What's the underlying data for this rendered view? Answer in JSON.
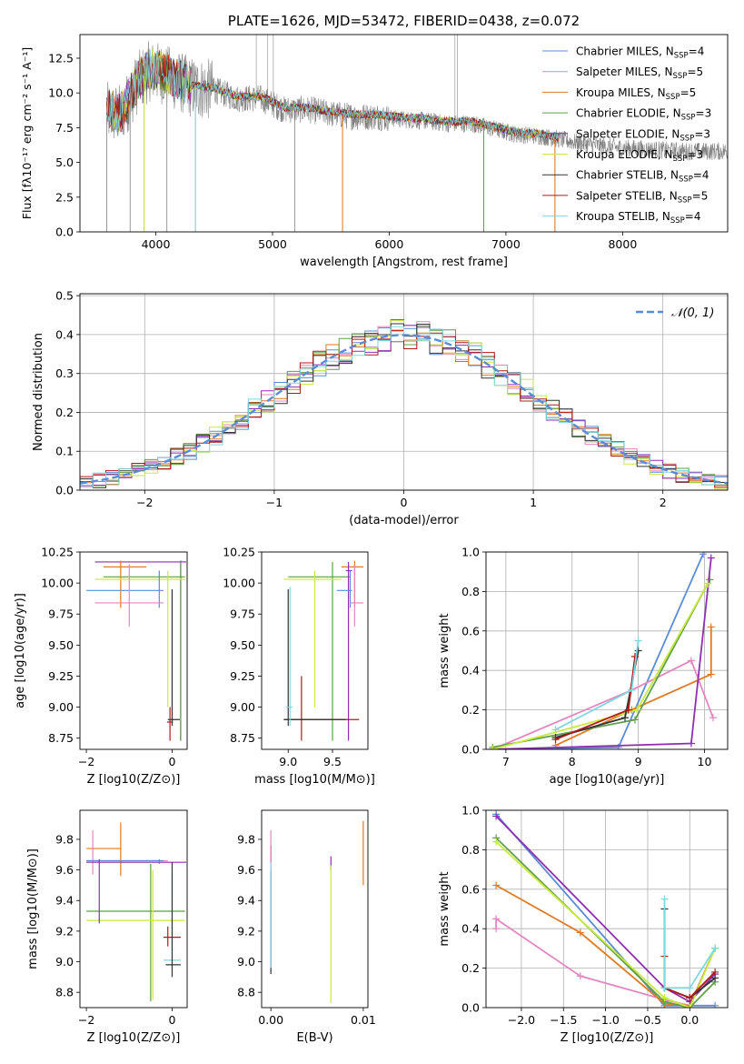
{
  "colors": {
    "chabrier_miles": "#5b8bd6",
    "salpeter_miles": "#e387bf",
    "kroupa_miles": "#e07b22",
    "chabrier_elodie": "#5f9e4a",
    "salpeter_elodie": "#8e2fb0",
    "kroupa_elodie": "#c9ea3c",
    "chabrier_stelib": "#333333",
    "salpeter_stelib": "#b01818",
    "kroupa_stelib": "#7fd7e0",
    "observed": "#808080",
    "normal": "#5b8bd6",
    "grid": "#b0b0b0"
  },
  "chart_data": [
    {
      "id": "spectrum",
      "type": "line",
      "title": "PLATE=1626, MJD=53472, FIBERID=0438, z=0.072",
      "xlabel": "wavelength [Angstrom, rest frame]",
      "ylabel": "Flux [fλ10⁻¹⁷ erg cm⁻² s⁻¹ A⁻¹]",
      "xlim": [
        3350,
        8900
      ],
      "ylim": [
        0,
        14.2
      ],
      "xticks": [
        4000,
        5000,
        6000,
        7000,
        8000
      ],
      "yticks": [
        0.0,
        2.5,
        5.0,
        7.5,
        10.0,
        12.5
      ],
      "legend_position": "upper-right",
      "legend": [
        {
          "label": "Chabrier MILES, N",
          "sub": "SSP",
          "tail": "=4",
          "color_key": "chabrier_miles"
        },
        {
          "label": "Salpeter MILES, N",
          "sub": "SSP",
          "tail": "=5",
          "color_key": "salpeter_miles"
        },
        {
          "label": "Kroupa MILES, N",
          "sub": "SSP",
          "tail": "=5",
          "color_key": "kroupa_miles"
        },
        {
          "label": "Chabrier ELODIE, N",
          "sub": "SSP",
          "tail": "=3",
          "color_key": "chabrier_elodie"
        },
        {
          "label": "Salpeter ELODIE, N",
          "sub": "SSP",
          "tail": "=3",
          "color_key": "salpeter_elodie"
        },
        {
          "label": "Kroupa ELODIE, N",
          "sub": "SSP",
          "tail": "=3",
          "color_key": "kroupa_elodie"
        },
        {
          "label": "Chabrier STELIB, N",
          "sub": "SSP",
          "tail": "=4",
          "color_key": "chabrier_stelib"
        },
        {
          "label": "Salpeter STELIB, N",
          "sub": "SSP",
          "tail": "=5",
          "color_key": "salpeter_stelib"
        },
        {
          "label": "Kroupa STELIB, N",
          "sub": "SSP",
          "tail": "=4",
          "color_key": "kroupa_stelib"
        }
      ],
      "continuum": {
        "x": [
          3580,
          3700,
          3850,
          3950,
          4050,
          4150,
          4300,
          4500,
          4700,
          4900,
          5100,
          5300,
          5500,
          5700,
          5900,
          6100,
          6300,
          6500,
          6700,
          6900,
          7100,
          7300,
          7500,
          7700,
          7900,
          8100,
          8300,
          8500,
          8900
        ],
        "y": [
          8.6,
          8.4,
          10.8,
          11.6,
          11.4,
          11.0,
          10.4,
          10.2,
          9.6,
          9.6,
          8.8,
          8.8,
          8.5,
          8.3,
          8.3,
          8.1,
          8.0,
          7.8,
          7.8,
          7.4,
          7.0,
          6.9,
          6.6,
          6.3,
          6.1,
          6.0,
          5.9,
          5.8,
          5.8
        ]
      },
      "dropouts_x": [
        3580,
        3780,
        3900,
        4095,
        4340,
        5190,
        5600,
        6810,
        7420
      ]
    },
    {
      "id": "residuals",
      "type": "bar",
      "xlabel": "(data-model)/error",
      "ylabel": "Normed distribution",
      "xlim": [
        -2.5,
        2.5
      ],
      "ylim": [
        0,
        0.505
      ],
      "xticks": [
        -2,
        -1,
        0,
        1,
        2
      ],
      "yticks": [
        0.0,
        0.1,
        0.2,
        0.3,
        0.4,
        0.5
      ],
      "legend_label": "𝒩(0, 1)",
      "legend_position": "upper-right",
      "bin_width": 0.1,
      "model_keys": [
        "chabrier_miles",
        "salpeter_miles",
        "kroupa_miles",
        "chabrier_elodie",
        "salpeter_elodie",
        "kroupa_elodie",
        "chabrier_stelib",
        "salpeter_stelib",
        "kroupa_stelib"
      ]
    },
    {
      "id": "age_vs_Z",
      "type": "scatter",
      "xlabel": "Z [log10(Z/Z⊙)]",
      "ylabel": "age  [log10(age/yr)]",
      "xlim": [
        -2.15,
        0.35
      ],
      "ylim": [
        8.66,
        10.25
      ],
      "xticks": [
        -2,
        0
      ],
      "yticks": [
        8.75,
        9.0,
        9.25,
        9.5,
        9.75,
        10.0,
        10.25
      ],
      "crosses": [
        {
          "c": "salpeter_elodie",
          "x": 0.2,
          "xl": -1.8,
          "xh": 0.33,
          "y": 10.17,
          "yl": 8.73,
          "yh": 10.18
        },
        {
          "c": "kroupa_miles",
          "x": -1.2,
          "xl": -1.6,
          "xh": -0.6,
          "y": 10.13,
          "yl": 9.8,
          "yh": 10.18
        },
        {
          "c": "chabrier_elodie",
          "x": 0.2,
          "xl": -1.6,
          "xh": 0.3,
          "y": 10.05,
          "yl": 8.73,
          "yh": 10.17
        },
        {
          "c": "kroupa_elodie",
          "x": -0.1,
          "xl": -1.8,
          "xh": 0.3,
          "y": 10.03,
          "yl": 9.0,
          "yh": 10.1
        },
        {
          "c": "chabrier_miles",
          "x": -0.3,
          "xl": -2.0,
          "xh": -0.2,
          "y": 9.94,
          "yl": 9.8,
          "yh": 10.1
        },
        {
          "c": "salpeter_miles",
          "x": -1.0,
          "xl": -1.8,
          "xh": -0.2,
          "y": 9.84,
          "yl": 9.65,
          "yh": 10.15
        },
        {
          "c": "salpeter_stelib",
          "x": -0.05,
          "xl": -0.12,
          "xh": 0.02,
          "y": 8.88,
          "yl": 8.73,
          "yh": 9.0
        },
        {
          "c": "kroupa_stelib",
          "x": 0.0,
          "xl": -0.1,
          "xh": 0.2,
          "y": 8.9,
          "yl": 8.85,
          "yh": 9.95
        },
        {
          "c": "chabrier_stelib",
          "x": 0.0,
          "xl": -0.1,
          "xh": 0.18,
          "y": 8.9,
          "yl": 8.85,
          "yh": 9.95
        }
      ]
    },
    {
      "id": "age_vs_mass",
      "type": "scatter",
      "xlabel": "mass [log10(M/M⊙)]",
      "ylabel": "",
      "xlim": [
        8.7,
        9.9
      ],
      "ylim": [
        8.66,
        10.25
      ],
      "xticks": [
        9.0,
        9.5
      ],
      "yticks": [
        8.75,
        9.0,
        9.25,
        9.5,
        9.75,
        10.0,
        10.25
      ],
      "crosses": [
        {
          "c": "kroupa_miles",
          "x": 9.75,
          "xl": 9.6,
          "xh": 9.85,
          "y": 10.13,
          "yl": 9.8,
          "yh": 10.18
        },
        {
          "c": "chabrier_elodie",
          "x": 9.5,
          "xl": 9.0,
          "xh": 9.7,
          "y": 10.05,
          "yl": 8.73,
          "yh": 10.17
        },
        {
          "c": "kroupa_elodie",
          "x": 9.3,
          "xl": 8.95,
          "xh": 9.6,
          "y": 10.03,
          "yl": 9.0,
          "yh": 10.1
        },
        {
          "c": "salpeter_elodie",
          "x": 9.68,
          "xl": 9.65,
          "xh": 9.72,
          "y": 10.1,
          "yl": 8.73,
          "yh": 10.17
        },
        {
          "c": "chabrier_miles",
          "x": 9.7,
          "xl": 9.55,
          "xh": 9.72,
          "y": 9.94,
          "yl": 9.8,
          "yh": 10.1
        },
        {
          "c": "salpeter_miles",
          "x": 9.75,
          "xl": 9.7,
          "xh": 9.85,
          "y": 9.84,
          "yl": 9.65,
          "yh": 10.15
        },
        {
          "c": "salpeter_stelib",
          "x": 9.15,
          "xl": 8.95,
          "xh": 9.8,
          "y": 8.9,
          "yl": 8.73,
          "yh": 9.25
        },
        {
          "c": "chabrier_stelib",
          "x": 9.0,
          "xl": 8.95,
          "xh": 9.65,
          "y": 8.9,
          "yl": 8.85,
          "yh": 9.95
        },
        {
          "c": "kroupa_stelib",
          "x": 9.02,
          "xl": 8.98,
          "xh": 9.05,
          "y": 9.0,
          "yl": 8.85,
          "yh": 9.97
        }
      ]
    },
    {
      "id": "weight_vs_age",
      "type": "line",
      "xlabel": "age  [log10(age/yr)]",
      "ylabel": "mass weight",
      "xlim": [
        6.7,
        10.35
      ],
      "ylim": [
        0,
        1.0
      ],
      "xticks": [
        7,
        8,
        9,
        10
      ],
      "yticks": [
        0.0,
        0.2,
        0.4,
        0.6,
        0.8,
        1.0
      ],
      "series": [
        {
          "c": "chabrier_miles",
          "x": [
            6.8,
            8.7,
            9.98
          ],
          "y": [
            0.0,
            0.01,
            0.99
          ]
        },
        {
          "c": "salpeter_miles",
          "x": [
            6.8,
            8.9,
            9.8,
            10.13
          ],
          "y": [
            0.0,
            0.3,
            0.45,
            0.16
          ]
        },
        {
          "c": "kroupa_miles",
          "x": [
            7.75,
            8.9,
            10.1,
            10.1
          ],
          "y": [
            0.02,
            0.2,
            0.38,
            0.62
          ]
        },
        {
          "c": "chabrier_elodie",
          "x": [
            6.8,
            8.95,
            10.08
          ],
          "y": [
            0.01,
            0.15,
            0.86
          ]
        },
        {
          "c": "salpeter_elodie",
          "x": [
            6.8,
            9.8,
            10.1
          ],
          "y": [
            0.0,
            0.03,
            0.97
          ]
        },
        {
          "c": "kroupa_elodie",
          "x": [
            6.8,
            8.98,
            10.05
          ],
          "y": [
            0.0,
            0.2,
            0.84
          ]
        },
        {
          "c": "chabrier_stelib",
          "x": [
            7.75,
            8.8,
            9.0
          ],
          "y": [
            0.06,
            0.16,
            0.5
          ]
        },
        {
          "c": "salpeter_stelib",
          "x": [
            7.75,
            8.85,
            8.95
          ],
          "y": [
            0.05,
            0.2,
            0.47
          ]
        },
        {
          "c": "kroupa_stelib",
          "x": [
            7.75,
            8.9,
            9.0
          ],
          "y": [
            0.1,
            0.3,
            0.55
          ]
        }
      ]
    },
    {
      "id": "mass_vs_Z",
      "type": "scatter",
      "xlabel": "Z [log10(Z/Z⊙)]",
      "ylabel": "mass [log10(M/M⊙)]",
      "xlim": [
        -2.15,
        0.35
      ],
      "ylim": [
        8.7,
        9.99
      ],
      "xticks": [
        -2,
        0
      ],
      "yticks": [
        8.8,
        9.0,
        9.2,
        9.4,
        9.6,
        9.8
      ],
      "crosses": [
        {
          "c": "kroupa_miles",
          "x": -1.2,
          "xl": -2.0,
          "xh": -1.2,
          "y": 9.74,
          "yl": 9.56,
          "yh": 9.91
        },
        {
          "c": "salpeter_miles",
          "x": -1.85,
          "xl": -2.0,
          "xh": -0.1,
          "y": 9.66,
          "yl": 9.57,
          "yh": 9.86
        },
        {
          "c": "salpeter_elodie",
          "x": -0.3,
          "xl": -2.0,
          "xh": 0.33,
          "y": 9.65,
          "yl": 9.64,
          "yh": 9.66
        },
        {
          "c": "chabrier_miles",
          "x": -0.3,
          "xl": -2.0,
          "xh": -0.2,
          "y": 9.66,
          "yl": 9.64,
          "yh": 9.67
        },
        {
          "c": "chabrier_elodie",
          "x": -0.5,
          "xl": -2.0,
          "xh": 0.3,
          "y": 9.33,
          "yl": 8.74,
          "yh": 9.64
        },
        {
          "c": "kroupa_elodie",
          "x": -0.45,
          "xl": -2.0,
          "xh": 0.3,
          "y": 9.27,
          "yl": 8.75,
          "yh": 9.6
        },
        {
          "c": "salpeter_stelib",
          "x": -0.1,
          "xl": -0.2,
          "xh": 0.2,
          "y": 9.16,
          "yl": 9.1,
          "yh": 9.23
        },
        {
          "c": "kroupa_stelib",
          "x": 0.0,
          "xl": -0.2,
          "xh": 0.2,
          "y": 9.01,
          "yl": 8.95,
          "yh": 9.58
        },
        {
          "c": "chabrier_stelib",
          "x": 0.0,
          "xl": -0.15,
          "xh": 0.2,
          "y": 8.98,
          "yl": 8.9,
          "yh": 9.65
        },
        {
          "c": "salpeter_elodie",
          "x": -1.7,
          "xl": -1.7,
          "xh": -1.7,
          "y": 9.3,
          "yl": 9.25,
          "yh": 9.67
        }
      ]
    },
    {
      "id": "mass_vs_ebv",
      "type": "scatter",
      "xlabel": "E(B-V)",
      "ylabel": "",
      "xlim": [
        -0.001,
        0.0105
      ],
      "ylim": [
        8.7,
        9.99
      ],
      "xticks": [
        0.0,
        0.01
      ],
      "xticklabels": [
        "0.00",
        "0.01"
      ],
      "yticks": [
        8.8,
        9.0,
        9.2,
        9.4,
        9.6,
        9.8
      ],
      "bars": [
        {
          "c": "salpeter_stelib",
          "x": 0.0,
          "yl": 9.65,
          "yh": 9.76
        },
        {
          "c": "salpeter_miles",
          "x": 0.0,
          "yl": 9.6,
          "yh": 9.86
        },
        {
          "c": "chabrier_stelib",
          "x": 0.0,
          "yl": 8.92,
          "yh": 9.6
        },
        {
          "c": "kroupa_stelib",
          "x": 0.0,
          "yl": 8.96,
          "yh": 9.65
        },
        {
          "c": "salpeter_elodie",
          "x": 0.0065,
          "yl": 9.6,
          "yh": 9.69
        },
        {
          "c": "kroupa_elodie",
          "x": 0.0065,
          "yl": 8.73,
          "yh": 9.63
        },
        {
          "c": "kroupa_miles",
          "x": 0.01,
          "yl": 9.5,
          "yh": 9.92
        }
      ]
    },
    {
      "id": "weight_vs_Z",
      "type": "line",
      "xlabel": "Z [log10(Z/Z⊙)]",
      "ylabel": "mass weight",
      "xlim": [
        -2.42,
        0.45
      ],
      "ylim": [
        0,
        1.0
      ],
      "xticks": [
        -2.0,
        -1.5,
        -1.0,
        -0.5,
        0.0
      ],
      "xticklabels": [
        "−2.0",
        "−1.5",
        "−1.0",
        "−0.5",
        "0.0"
      ],
      "yticks": [
        0.0,
        0.2,
        0.4,
        0.6,
        0.8,
        1.0
      ],
      "series": [
        {
          "c": "chabrier_miles",
          "x": [
            -2.3,
            -0.3,
            0.3
          ],
          "y": [
            0.98,
            0.01,
            0.01
          ]
        },
        {
          "c": "salpeter_miles",
          "x": [
            -2.3,
            -2.3,
            -1.3,
            -0.3,
            0.0,
            0.3
          ],
          "y": [
            0.4,
            0.45,
            0.16,
            0.04,
            0.01,
            0.3
          ]
        },
        {
          "c": "kroupa_miles",
          "x": [
            -2.3,
            -1.3,
            -0.3,
            0.0,
            0.3
          ],
          "y": [
            0.62,
            0.38,
            0.02,
            0.01,
            0.3
          ]
        },
        {
          "c": "chabrier_elodie",
          "x": [
            -2.3,
            -0.3,
            0.0,
            0.3
          ],
          "y": [
            0.86,
            0.03,
            0.0,
            0.13
          ]
        },
        {
          "c": "salpeter_elodie",
          "x": [
            -2.3,
            -0.3,
            0.0,
            0.3
          ],
          "y": [
            0.97,
            0.1,
            0.03,
            0.17
          ]
        },
        {
          "c": "kroupa_elodie",
          "x": [
            -2.3,
            -0.3,
            0.0,
            0.3
          ],
          "y": [
            0.84,
            0.05,
            0.0,
            0.3
          ]
        },
        {
          "c": "chabrier_stelib",
          "x": [
            -0.3,
            -0.3,
            0.0,
            0.3
          ],
          "y": [
            0.5,
            0.1,
            0.05,
            0.15
          ]
        },
        {
          "c": "salpeter_stelib",
          "x": [
            -0.3,
            -0.3,
            0.0,
            0.3
          ],
          "y": [
            0.26,
            0.1,
            0.05,
            0.18
          ]
        },
        {
          "c": "kroupa_stelib",
          "x": [
            -0.3,
            -0.3,
            0.0,
            0.3
          ],
          "y": [
            0.55,
            0.1,
            0.1,
            0.3
          ]
        }
      ]
    }
  ]
}
